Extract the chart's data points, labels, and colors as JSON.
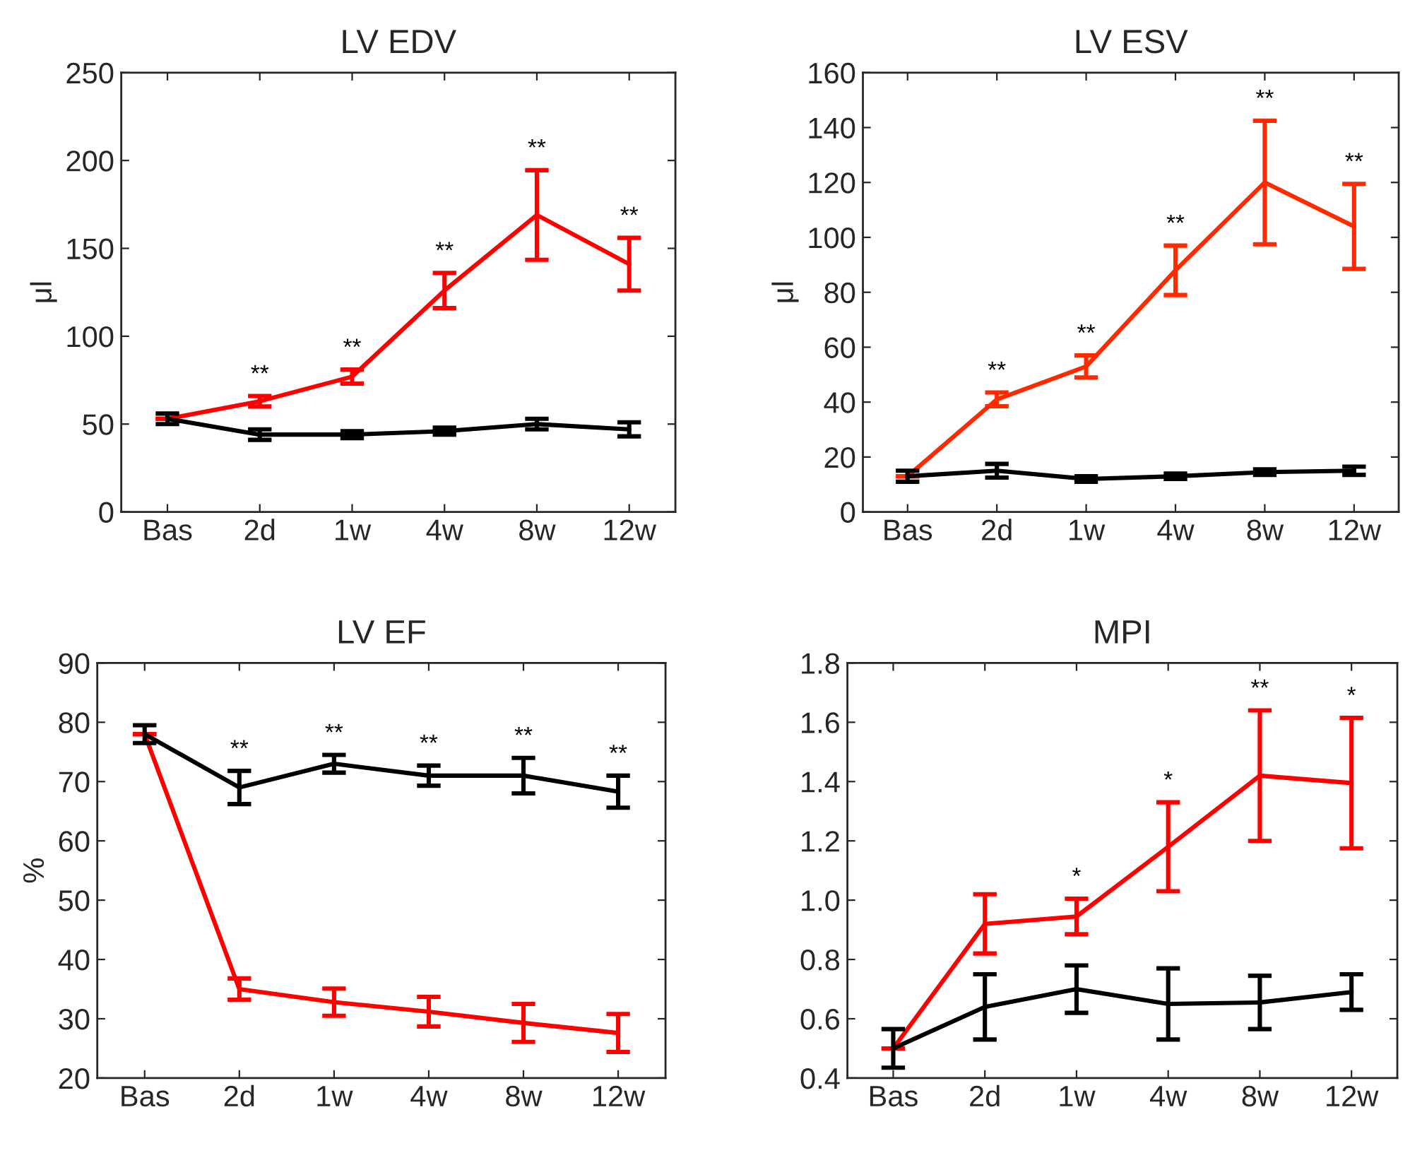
{
  "chart_data": [
    {
      "type": "line",
      "title": "LV EDV",
      "ylabel": "μl",
      "categories": [
        "Bas",
        "2d",
        "1w",
        "4w",
        "8w",
        "12w"
      ],
      "ylim": [
        0,
        250
      ],
      "yticks": [
        0,
        50,
        100,
        150,
        200,
        250
      ],
      "grid": false,
      "marker": "none",
      "line_style": "solid",
      "series": [
        {
          "color": "#ff0000",
          "values": [
            53,
            63,
            77,
            126,
            169,
            141
          ],
          "errors": [
            null,
            3,
            4,
            10,
            25.5,
            15
          ]
        },
        {
          "color": "#000000",
          "values": [
            53,
            44,
            44,
            46,
            50,
            47
          ],
          "errors": [
            3,
            3,
            2,
            2,
            3,
            4
          ]
        }
      ],
      "annotations": [
        {
          "text": "**",
          "x": "2d",
          "y": 66
        },
        {
          "text": "**",
          "x": "1w",
          "y": 81
        },
        {
          "text": "**",
          "x": "4w",
          "y": 136
        },
        {
          "text": "**",
          "x": "8w",
          "y": 194.5
        },
        {
          "text": "**",
          "x": "12w",
          "y": 156
        }
      ]
    },
    {
      "type": "line",
      "title": "LV ESV",
      "ylabel": "μl",
      "categories": [
        "Bas",
        "2d",
        "1w",
        "4w",
        "8w",
        "12w"
      ],
      "ylim": [
        0,
        160
      ],
      "yticks": [
        0,
        20,
        40,
        60,
        80,
        100,
        120,
        140,
        160
      ],
      "grid": false,
      "marker": "none",
      "line_style": "solid",
      "series": [
        {
          "color": "#ff2a00",
          "values": [
            13,
            41,
            53,
            88,
            120,
            104
          ],
          "errors": [
            null,
            2.5,
            4,
            9,
            22.5,
            15.5
          ]
        },
        {
          "color": "#000000",
          "values": [
            13,
            15,
            12,
            13,
            14.5,
            15
          ],
          "errors": [
            2,
            2.5,
            1,
            1,
            1,
            1.5
          ]
        }
      ],
      "annotations": [
        {
          "text": "**",
          "x": "2d",
          "y": 43.5
        },
        {
          "text": "**",
          "x": "1w",
          "y": 57
        },
        {
          "text": "**",
          "x": "4w",
          "y": 97
        },
        {
          "text": "**",
          "x": "8w",
          "y": 142.5
        },
        {
          "text": "**",
          "x": "12w",
          "y": 119.5
        }
      ]
    },
    {
      "type": "line",
      "title": "LV EF",
      "ylabel": "%",
      "categories": [
        "Bas",
        "2d",
        "1w",
        "4w",
        "8w",
        "12w"
      ],
      "ylim": [
        20,
        90
      ],
      "yticks": [
        20,
        30,
        40,
        50,
        60,
        70,
        80,
        90
      ],
      "grid": false,
      "marker": "none",
      "line_style": "solid",
      "series": [
        {
          "color": "#ff0000",
          "values": [
            78,
            35,
            32.8,
            31.2,
            29.3,
            27.6
          ],
          "errors": [
            null,
            1.8,
            2.3,
            2.5,
            3.2,
            3.2
          ]
        },
        {
          "color": "#000000",
          "values": [
            78,
            69,
            73,
            71,
            71,
            68.3
          ],
          "errors": [
            1.5,
            2.8,
            1.5,
            1.7,
            3,
            2.7
          ]
        }
      ],
      "annotations": [
        {
          "text": "**",
          "x": "2d",
          "y": 71.8
        },
        {
          "text": "**",
          "x": "1w",
          "y": 74.5
        },
        {
          "text": "**",
          "x": "4w",
          "y": 72.7
        },
        {
          "text": "**",
          "x": "8w",
          "y": 74
        },
        {
          "text": "**",
          "x": "12w",
          "y": 71
        }
      ]
    },
    {
      "type": "line",
      "title": "MPI",
      "categories": [
        "Bas",
        "2d",
        "1w",
        "4w",
        "8w",
        "12w"
      ],
      "ylim": [
        0.4,
        1.8
      ],
      "yticks": [
        {
          "value": 0.4,
          "label": "0.4"
        },
        {
          "value": 0.6,
          "label": "0.6"
        },
        {
          "value": 0.8,
          "label": "0.8"
        },
        {
          "value": 1.0,
          "label": "1.0"
        },
        {
          "value": 1.2,
          "label": "1.2"
        },
        {
          "value": 1.4,
          "label": "1.4"
        },
        {
          "value": 1.6,
          "label": "1.6"
        },
        {
          "value": 1.8,
          "label": "1.8"
        }
      ],
      "grid": false,
      "marker": "none",
      "line_style": "solid",
      "series": [
        {
          "color": "#ff0000",
          "values": [
            0.5,
            0.92,
            0.945,
            1.18,
            1.42,
            1.395
          ],
          "errors": [
            null,
            0.1,
            0.06,
            0.15,
            0.22,
            0.22
          ]
        },
        {
          "color": "#000000",
          "values": [
            0.5,
            0.64,
            0.7,
            0.65,
            0.655,
            0.69
          ],
          "errors": [
            0.065,
            0.11,
            0.08,
            0.12,
            0.09,
            0.06
          ]
        }
      ],
      "annotations": [
        {
          "text": "*",
          "x": "1w",
          "y": 1.005
        },
        {
          "text": "*",
          "x": "4w",
          "y": 1.33
        },
        {
          "text": "**",
          "x": "8w",
          "y": 1.64
        },
        {
          "text": "*",
          "x": "12w",
          "y": 1.615
        }
      ]
    }
  ]
}
